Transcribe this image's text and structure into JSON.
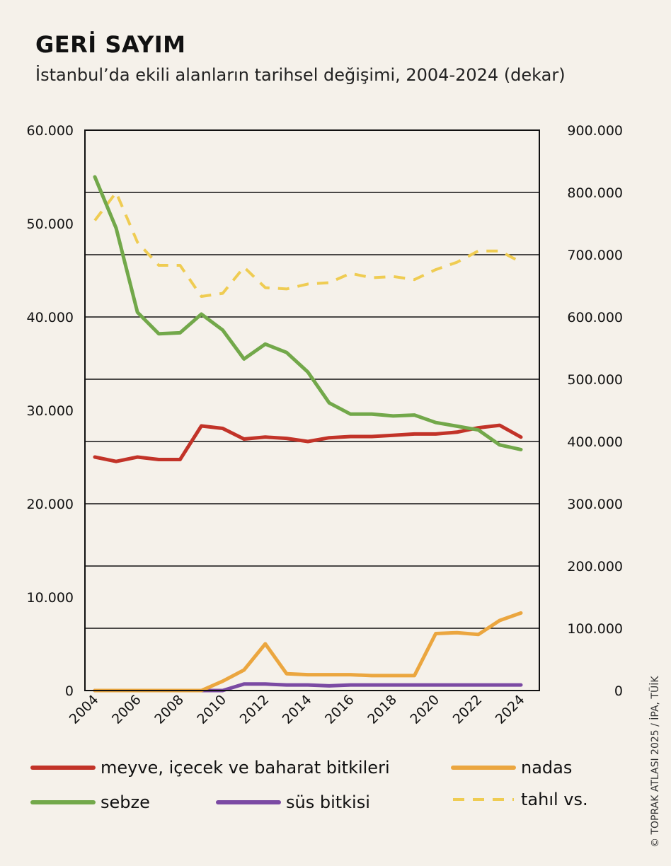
{
  "title": "GERİ SAYIM",
  "subtitle": "İstanbul’da ekili alanların tarihsel değişimi, 2004-2024 (dekar)",
  "credit": "© TOPRAK ATLASI 2025 / İPA, TÜİK",
  "colors": {
    "background": "#f5f1ea",
    "meyve": "#c23328",
    "sebze": "#72a84a",
    "nadas": "#eba63f",
    "sus": "#7b4aa3",
    "tahil": "#efcc52"
  },
  "chart_data": {
    "type": "line",
    "title": "İstanbul’da ekili alanların tarihsel değişimi, 2004-2024 (dekar)",
    "x": [
      2004,
      2005,
      2006,
      2007,
      2008,
      2009,
      2010,
      2011,
      2012,
      2013,
      2014,
      2015,
      2016,
      2017,
      2018,
      2019,
      2020,
      2021,
      2022,
      2023,
      2024
    ],
    "x_tick_labels": [
      "2004",
      "2006",
      "2008",
      "2010",
      "2012",
      "2014",
      "2016",
      "2018",
      "2020",
      "2022",
      "2024"
    ],
    "xlim": [
      2004,
      2024.5
    ],
    "y_left": {
      "lim": [
        0,
        60000
      ],
      "ticks": [
        0,
        10000,
        20000,
        30000,
        40000,
        50000,
        60000
      ],
      "tick_labels": [
        "0",
        "10.000",
        "20.000",
        "30.000",
        "40.000",
        "50.000",
        "60.000"
      ]
    },
    "y_right": {
      "lim": [
        0,
        900000
      ],
      "ticks": [
        0,
        100000,
        200000,
        300000,
        400000,
        500000,
        600000,
        700000,
        800000,
        900000
      ],
      "tick_labels": [
        "0",
        "100.000",
        "200.000",
        "300.000",
        "400.000",
        "500.000",
        "600.000",
        "700.000",
        "800.000",
        "900.000"
      ]
    },
    "grid": "horizontal, right axis ticks",
    "legend_position": "bottom",
    "series": [
      {
        "name": "meyve, içecek ve baharat bitkileri",
        "axis": "right",
        "style": "solid",
        "color_key": "meyve",
        "values": [
          375000,
          368000,
          375000,
          371000,
          371000,
          425000,
          421000,
          404000,
          407000,
          405000,
          400000,
          406000,
          408000,
          408000,
          410000,
          412000,
          412000,
          415000,
          422000,
          426000,
          407000
        ]
      },
      {
        "name": "nadas",
        "axis": "left",
        "style": "solid",
        "color_key": "nadas",
        "values": [
          0,
          0,
          0,
          0,
          0,
          0,
          1000,
          2200,
          5000,
          1800,
          1700,
          1700,
          1700,
          1600,
          1600,
          1600,
          6100,
          6200,
          6000,
          7500,
          8300
        ]
      },
      {
        "name": "sebze",
        "axis": "left",
        "style": "solid",
        "color_key": "sebze",
        "values": [
          55000,
          49500,
          40500,
          38200,
          38300,
          40300,
          38600,
          35500,
          37100,
          36200,
          34100,
          30800,
          29600,
          29600,
          29400,
          29500,
          28700,
          28300,
          27900,
          26300,
          25800
        ]
      },
      {
        "name": "süs bitkisi",
        "axis": "left",
        "style": "solid",
        "color_key": "sus",
        "values": [
          0,
          0,
          0,
          0,
          0,
          0,
          0,
          700,
          700,
          600,
          600,
          500,
          600,
          600,
          600,
          600,
          600,
          600,
          600,
          600,
          600
        ]
      },
      {
        "name": "tahıl vs.",
        "axis": "right",
        "style": "dashed",
        "color_key": "tahil",
        "values": [
          755000,
          800000,
          720000,
          683000,
          683000,
          633000,
          638000,
          680000,
          647000,
          645000,
          653000,
          655000,
          670000,
          663000,
          665000,
          660000,
          676000,
          688000,
          706000,
          706000,
          688000
        ]
      }
    ]
  }
}
